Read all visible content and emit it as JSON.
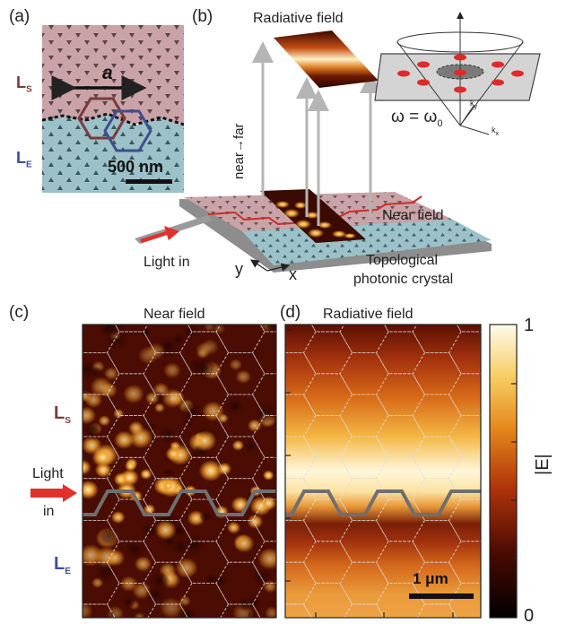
{
  "panel_a": {
    "label": "(a)",
    "lattice_constant_label": "a",
    "scale_bar": "500 nm",
    "region_top": {
      "main": "L",
      "sub": "S"
    },
    "region_bottom": {
      "main": "L",
      "sub": "E"
    }
  },
  "panel_b": {
    "label": "(b)",
    "radiative_field": "Radiative field",
    "near_far": "near→far",
    "near_field": "Near field",
    "light_in": "Light in",
    "axis_y": "y",
    "axis_x": "x",
    "crystal_line1": "Topological",
    "crystal_line2": "photonic crystal",
    "omega_eq": "ω = ω",
    "omega_sub": "0",
    "kx": "k",
    "kx_sub": "x",
    "ky": "k",
    "ky_sub": "y"
  },
  "panel_c": {
    "label": "(c)",
    "title": "Near field",
    "region_top": {
      "main": "L",
      "sub": "S"
    },
    "region_bottom": {
      "main": "L",
      "sub": "E"
    },
    "light_in_line1": "Light",
    "light_in_line2": "in"
  },
  "panel_d": {
    "label": "(d)",
    "title": "Radiative field",
    "scale_bar": "1 μm"
  },
  "colorbar": {
    "label": "|E|",
    "max": "1",
    "min": "0"
  },
  "colors": {
    "top_region": "#c9a3a7",
    "bottom_region": "#9cc1c8",
    "waveguide_line": "#d02a2a",
    "arrow_red": "#e0312c",
    "hex_top": "#7b3a3f",
    "hex_bottom": "#3e4f90",
    "interface_gray": "#6f6f6f"
  }
}
